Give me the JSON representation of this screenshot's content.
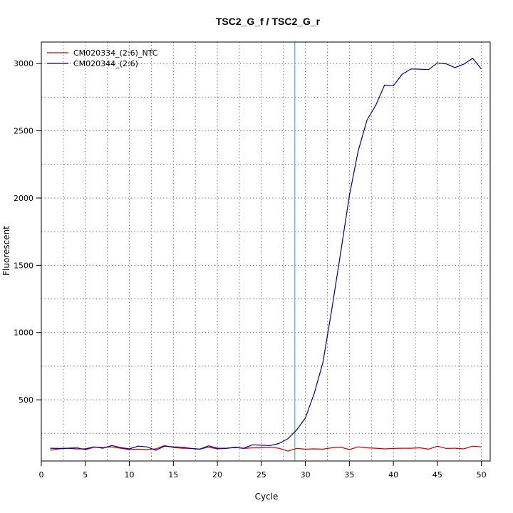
{
  "chart_data": {
    "type": "line",
    "title": "TSC2_G_f / TSC2_G_r",
    "xlabel": "Cycle",
    "ylabel": "Fluorescent",
    "xlim": [
      0,
      51
    ],
    "ylim": [
      45,
      3160
    ],
    "x_ticks": [
      0,
      5,
      10,
      15,
      20,
      25,
      30,
      35,
      40,
      45,
      50
    ],
    "y_ticks": [
      500,
      1000,
      1500,
      2000,
      2500,
      3000
    ],
    "grid": true,
    "grid_style": "dotted",
    "legend_position": "top-left",
    "threshold_cycle": 28.8,
    "threshold_color": "#00d8d8",
    "x": [
      1,
      2,
      3,
      4,
      5,
      6,
      7,
      8,
      9,
      10,
      11,
      12,
      13,
      14,
      15,
      16,
      17,
      18,
      19,
      20,
      21,
      22,
      23,
      24,
      25,
      26,
      27,
      28,
      29,
      30,
      31,
      32,
      33,
      34,
      35,
      36,
      37,
      38,
      39,
      40,
      41,
      42,
      43,
      44,
      45,
      46,
      47,
      48,
      49,
      50
    ],
    "series": [
      {
        "name": "CM020334_(2:6)_NTC",
        "color": "#cc0000",
        "values": [
          125,
          135,
          140,
          145,
          128,
          148,
          145,
          150,
          140,
          130,
          133,
          130,
          135,
          160,
          145,
          140,
          138,
          133,
          148,
          135,
          138,
          148,
          138,
          143,
          143,
          148,
          140,
          118,
          138,
          133,
          135,
          133,
          143,
          148,
          130,
          150,
          143,
          140,
          135,
          138,
          140,
          140,
          143,
          133,
          155,
          138,
          140,
          135,
          155,
          150
        ]
      },
      {
        "name": "CM020344_(2:6)",
        "color": "#000099",
        "values": [
          140,
          138,
          140,
          135,
          135,
          150,
          140,
          160,
          145,
          135,
          155,
          150,
          125,
          155,
          150,
          148,
          138,
          133,
          158,
          140,
          140,
          145,
          140,
          165,
          162,
          160,
          175,
          210,
          275,
          365,
          545,
          780,
          1170,
          1590,
          2020,
          2350,
          2580,
          2690,
          2840,
          2835,
          2920,
          2960,
          2958,
          2955,
          3005,
          2998,
          2970,
          2995,
          3040,
          2960
        ]
      }
    ]
  }
}
